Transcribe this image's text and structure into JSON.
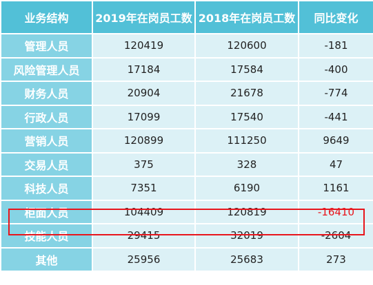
{
  "table": {
    "header": [
      "业务结构",
      "2019年在岗员工数",
      "2018年在岗员工数",
      "同比变化"
    ],
    "rows": [
      [
        "管理人员",
        120419,
        120600,
        -181
      ],
      [
        "风险管理人员",
        17184,
        17584,
        -400
      ],
      [
        "财务人员",
        20904,
        21678,
        -774
      ],
      [
        "行政人员",
        17099,
        17540,
        -441
      ],
      [
        "营销人员",
        120899,
        111250,
        9649
      ],
      [
        "交易人员",
        375,
        328,
        47
      ],
      [
        "科技人员",
        7351,
        6190,
        1161
      ],
      [
        "柜面人员",
        104409,
        120819,
        -16410
      ],
      [
        "技能人员",
        29415,
        32019,
        -2604
      ],
      [
        "其他",
        25956,
        25683,
        273
      ]
    ]
  }
}
